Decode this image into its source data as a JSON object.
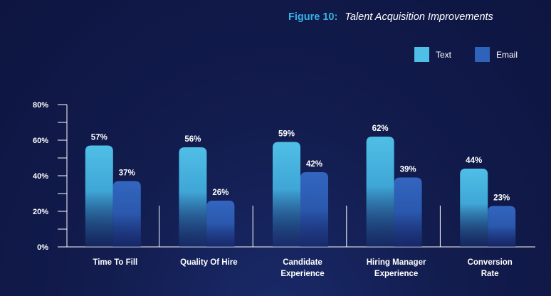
{
  "header": {
    "figure_label": "Figure 10:",
    "title": "Talent Acquisition Improvements"
  },
  "colors": {
    "text_series": "#4fbfe6",
    "email_series": "#2f63bb",
    "axis": "#ffffff",
    "background": "#121c4e"
  },
  "chart_data": {
    "type": "bar",
    "title": "Talent Acquisition Improvements",
    "xlabel": "",
    "ylabel": "",
    "ylim": [
      0,
      80
    ],
    "y_ticks": [
      "0%",
      "20%",
      "40%",
      "60%",
      "80%"
    ],
    "categories": [
      [
        "Time To Fill"
      ],
      [
        "Quality Of Hire"
      ],
      [
        "Candidate",
        "Experience"
      ],
      [
        "Hiring Manager",
        "Experience"
      ],
      [
        "Conversion",
        "Rate"
      ]
    ],
    "series": [
      {
        "name": "Text",
        "values": [
          57,
          56,
          59,
          62,
          44
        ],
        "labels": [
          "57%",
          "56%",
          "59%",
          "62%",
          "44%"
        ]
      },
      {
        "name": "Email",
        "values": [
          37,
          26,
          42,
          39,
          23
        ],
        "labels": [
          "37%",
          "26%",
          "42%",
          "39%",
          "23%"
        ]
      }
    ],
    "legend": "top-right",
    "grid": false
  }
}
